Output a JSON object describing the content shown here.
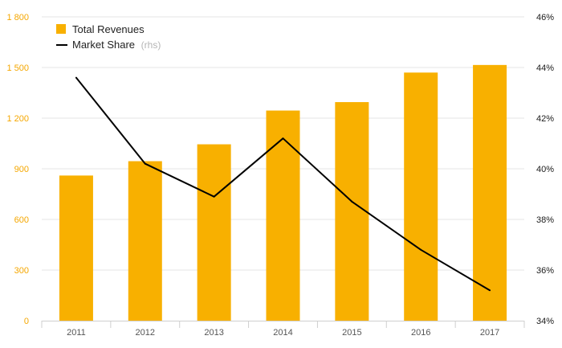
{
  "chart_data": {
    "type": "bar",
    "categories": [
      "2011",
      "2012",
      "2013",
      "2014",
      "2015",
      "2016",
      "2017"
    ],
    "series": [
      {
        "name": "Total Revenues",
        "type": "bar",
        "axis": "left",
        "values": [
          860,
          945,
          1045,
          1245,
          1295,
          1470,
          1515
        ]
      },
      {
        "name": "Market Share",
        "name_suffix": "(rhs)",
        "type": "line",
        "axis": "right",
        "values": [
          43.6,
          40.2,
          38.9,
          41.2,
          38.7,
          36.8,
          35.2
        ]
      }
    ],
    "ylim_left": [
      0,
      1800
    ],
    "yticks_left": [
      0,
      300,
      600,
      900,
      1200,
      1500,
      1800
    ],
    "ytick_labels_left": [
      "0",
      "300",
      "600",
      "900",
      "1 200",
      "1 500",
      "1 800"
    ],
    "ylim_right": [
      34,
      46
    ],
    "yticks_right": [
      34,
      36,
      38,
      40,
      42,
      44,
      46
    ],
    "ytick_labels_right": [
      "34%",
      "36%",
      "38%",
      "40%",
      "42%",
      "44%",
      "46%"
    ],
    "grid": true,
    "legend": "top-left",
    "colors": {
      "bar": "#f8b000",
      "line": "#000000",
      "grid": "#e6e6e6",
      "left_tick": "#f5a700"
    }
  }
}
